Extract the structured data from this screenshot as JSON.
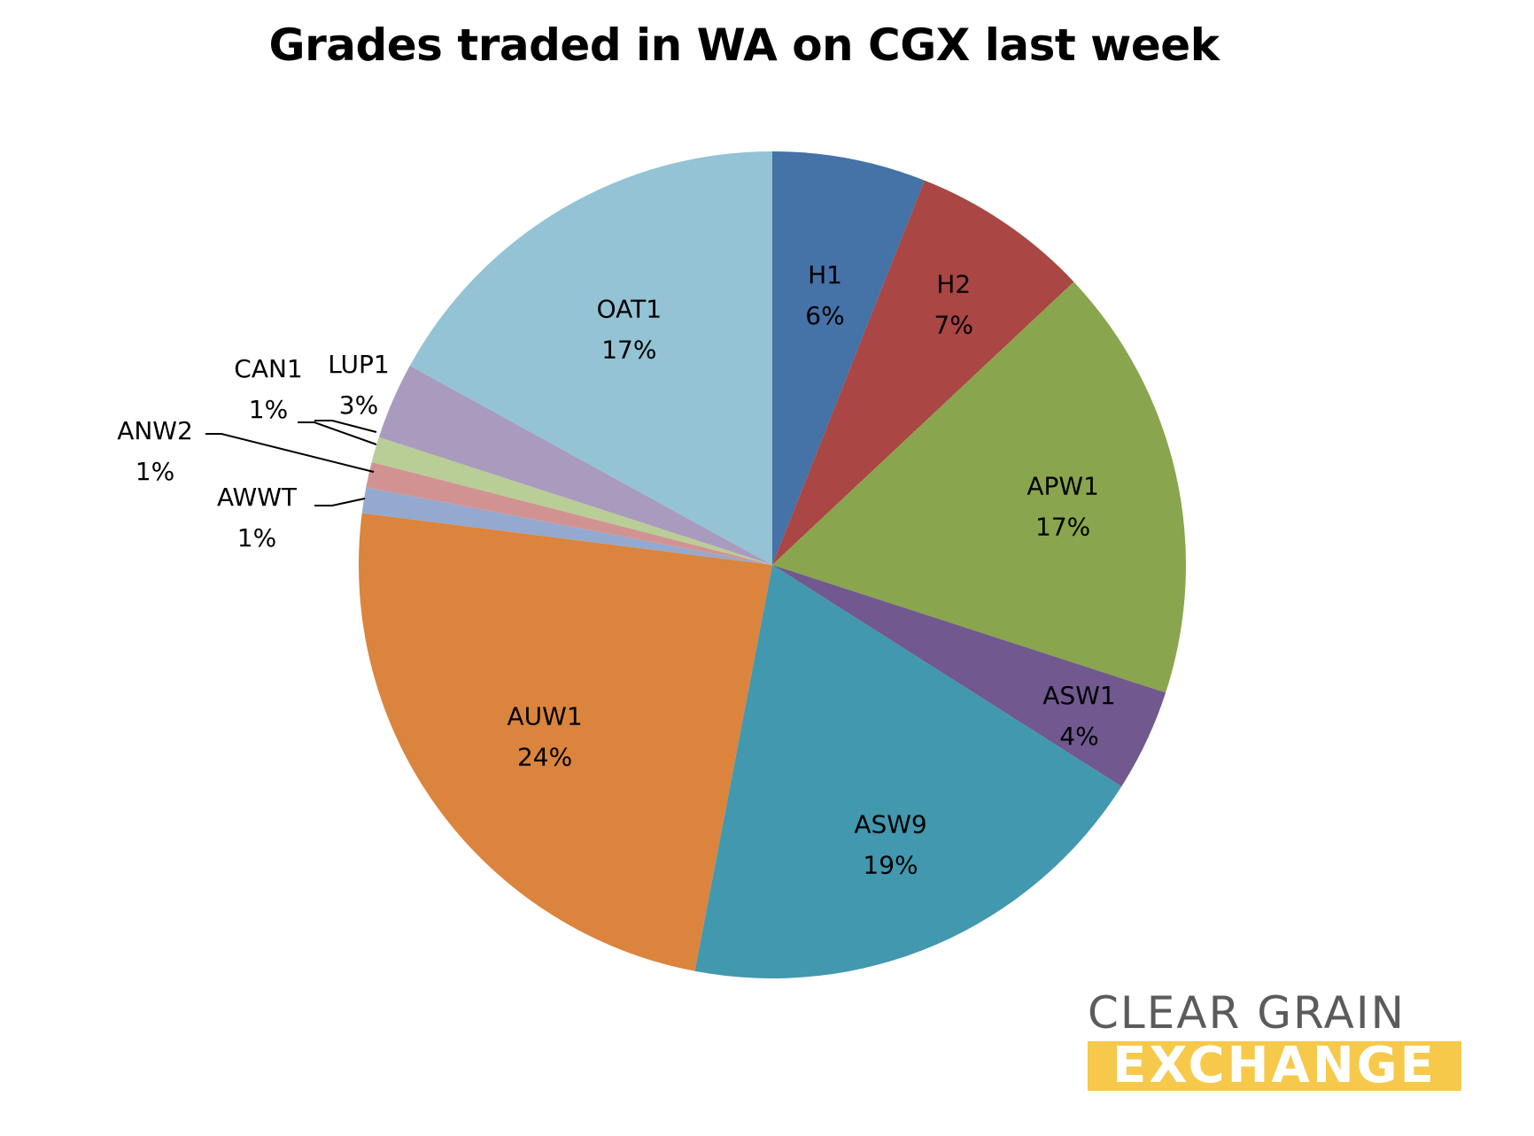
{
  "chart_data": {
    "type": "pie",
    "title": "Grades traded in WA on CGX last week",
    "categories": [
      "H1",
      "H2",
      "APW1",
      "ASW1",
      "ASW9",
      "AUW1",
      "AWWT",
      "ANW2",
      "CAN1",
      "LUP1",
      "OAT1"
    ],
    "values": [
      6,
      7,
      17,
      4,
      19,
      24,
      1,
      1,
      1,
      3,
      17
    ],
    "labels": [
      "6%",
      "7%",
      "17%",
      "4%",
      "19%",
      "24%",
      "1%",
      "1%",
      "1%",
      "3%",
      "17%"
    ],
    "colors": [
      "#4572a7",
      "#aa4643",
      "#89a54e",
      "#71588f",
      "#4198af",
      "#db843d",
      "#93a9cf",
      "#d19392",
      "#b9cd96",
      "#a99bbd",
      "#93c3d4"
    ],
    "start_angle_deg": 0,
    "direction": "clockwise",
    "legend": "none"
  },
  "logo": {
    "line1": "CLEAR GRAIN",
    "line2": "EXCHANGE",
    "accent_color": "#f6c94a"
  }
}
